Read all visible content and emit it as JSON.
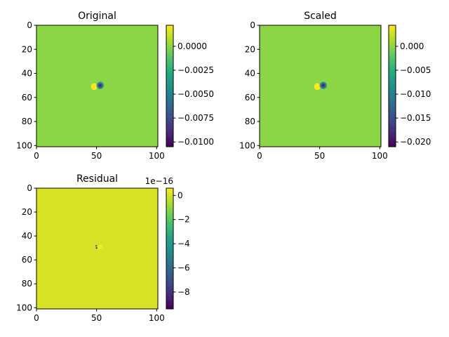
{
  "chart_data": [
    {
      "type": "heatmap",
      "title": "Original",
      "xlim": [
        0,
        101
      ],
      "ylim": [
        101,
        0
      ],
      "x_ticks": [
        "0",
        "50",
        "100"
      ],
      "y_ticks": [
        "0",
        "20",
        "40",
        "60",
        "80",
        "100"
      ],
      "background_value": 0.0,
      "features": [
        {
          "label": "negative lobe",
          "center": [
            53,
            50
          ],
          "value_min": -0.0105
        },
        {
          "label": "positive lobe",
          "center": [
            48,
            51
          ],
          "value_max": 0.0022
        }
      ],
      "colorbar": {
        "range": [
          -0.0105,
          0.0022
        ],
        "ticks": [
          {
            "value": 0.0,
            "label": "0.0000"
          },
          {
            "value": -0.0025,
            "label": "−0.0025"
          },
          {
            "value": -0.005,
            "label": "−0.0050"
          },
          {
            "value": -0.0075,
            "label": "−0.0075"
          },
          {
            "value": -0.01,
            "label": "−0.0100"
          }
        ]
      }
    },
    {
      "type": "heatmap",
      "title": "Scaled",
      "xlim": [
        0,
        101
      ],
      "ylim": [
        101,
        0
      ],
      "x_ticks": [
        "0",
        "50",
        "100"
      ],
      "y_ticks": [
        "0",
        "20",
        "40",
        "60",
        "80",
        "100"
      ],
      "background_value": 0.0,
      "features": [
        {
          "label": "negative lobe",
          "center": [
            53,
            50
          ],
          "value_min": -0.021
        },
        {
          "label": "positive lobe",
          "center": [
            48,
            51
          ],
          "value_max": 0.0044
        }
      ],
      "colorbar": {
        "range": [
          -0.021,
          0.0044
        ],
        "ticks": [
          {
            "value": 0.0,
            "label": "0.000"
          },
          {
            "value": -0.005,
            "label": "−0.005"
          },
          {
            "value": -0.01,
            "label": "−0.010"
          },
          {
            "value": -0.015,
            "label": "−0.015"
          },
          {
            "value": -0.02,
            "label": "−0.020"
          }
        ]
      }
    },
    {
      "type": "heatmap",
      "title": "Residual",
      "xlim": [
        0,
        101
      ],
      "ylim": [
        101,
        0
      ],
      "x_ticks": [
        "0",
        "50",
        "100"
      ],
      "y_ticks": [
        "0",
        "20",
        "40",
        "60",
        "80",
        "100"
      ],
      "background_value": 0.0,
      "features": [
        {
          "label": "small negative spot",
          "center": [
            50,
            50
          ],
          "value_min": -9.4e-16
        },
        {
          "label": "positive patch",
          "center": [
            53,
            49
          ],
          "value_max": 6e-17
        }
      ],
      "colorbar": {
        "range": [
          -9.4,
          0.6
        ],
        "offset_text": "1e−16",
        "ticks": [
          {
            "value": 0,
            "label": "0"
          },
          {
            "value": -2,
            "label": "−2"
          },
          {
            "value": -4,
            "label": "−4"
          },
          {
            "value": -6,
            "label": "−6"
          },
          {
            "value": -8,
            "label": "−8"
          }
        ]
      }
    }
  ]
}
